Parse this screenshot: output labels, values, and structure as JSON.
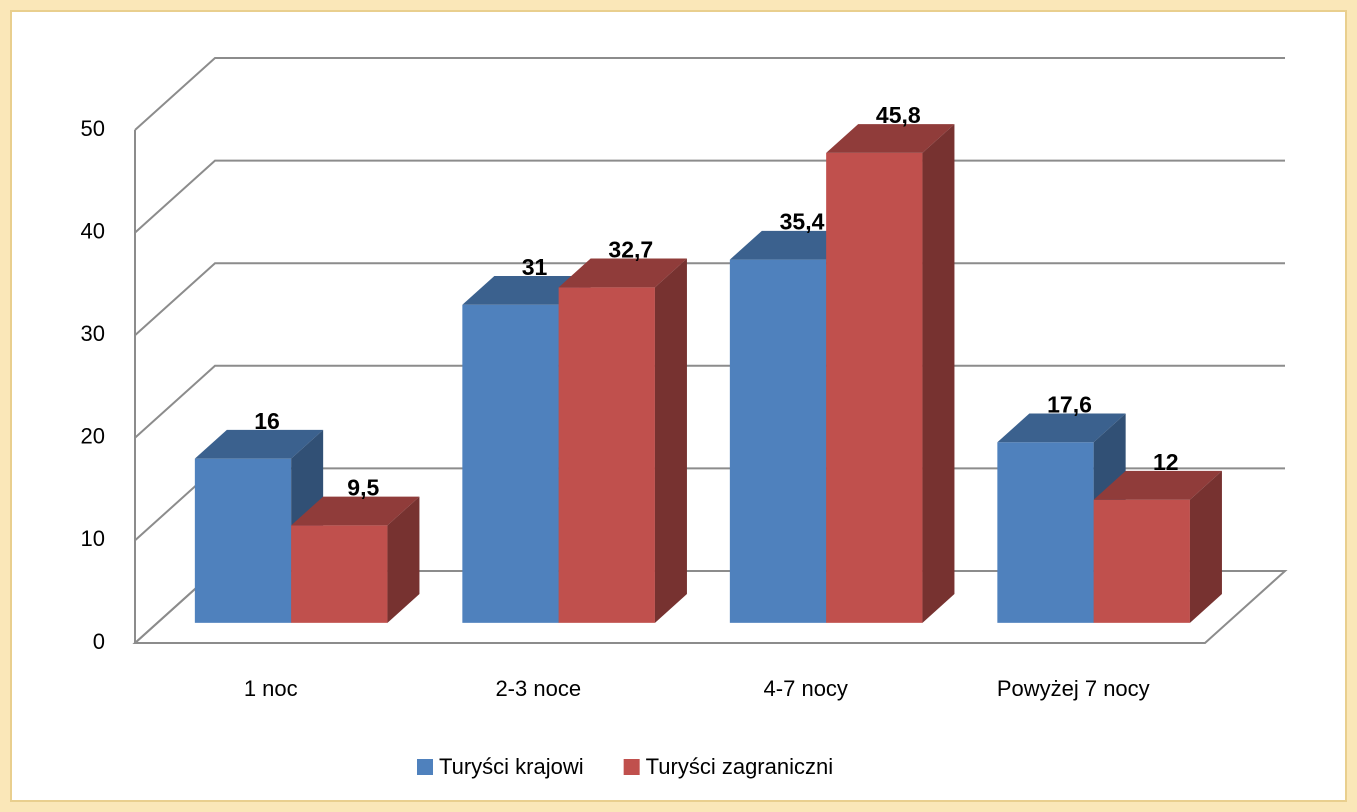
{
  "chart_data": {
    "type": "bar3d",
    "categories": [
      "1 noc",
      "2-3 noce",
      "4-7 nocy",
      "Powyżej 7 nocy"
    ],
    "series": [
      {
        "name": "Turyści krajowi",
        "color": "#4f81bd",
        "values": [
          16,
          31,
          35.4,
          17.6
        ],
        "value_labels": [
          "16",
          "31",
          "35,4",
          "17,6"
        ]
      },
      {
        "name": "Turyści zagraniczni",
        "color": "#c0504d",
        "values": [
          9.5,
          32.7,
          45.8,
          12
        ],
        "value_labels": [
          "9,5",
          "32,7",
          "45,8",
          "12"
        ]
      }
    ],
    "ylim": [
      0,
      50
    ],
    "yticks": [
      0,
      10,
      20,
      30,
      40,
      50
    ],
    "grid": true,
    "legend": "bottom"
  }
}
